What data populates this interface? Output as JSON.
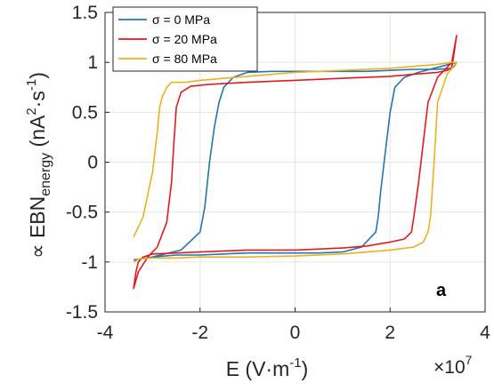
{
  "chart_data": {
    "type": "line",
    "xlabel_base": "E (V·m",
    "xlabel_sup": "-1",
    "xlabel_close": ")",
    "x_multiplier_base": "×10",
    "x_multiplier_exp": "7",
    "ylabel_prefix": "∝ EBN",
    "ylabel_sub": "energy",
    "ylabel_unit_open": " (nA",
    "ylabel_sup1": "2",
    "ylabel_mid": "·s",
    "ylabel_sup2": "-1",
    "ylabel_close": ")",
    "panel_label": "a",
    "xlim": [
      -4,
      4
    ],
    "ylim": [
      -1.5,
      1.5
    ],
    "xticks": [
      -4,
      -2,
      0,
      2,
      4
    ],
    "xtick_labels": [
      "-4",
      "-2",
      "0",
      "2",
      "4"
    ],
    "yticks": [
      -1.5,
      -1,
      -0.5,
      0,
      0.5,
      1,
      1.5
    ],
    "ytick_labels": [
      "-1.5",
      "-1",
      "-0.5",
      "0",
      "0.5",
      "1",
      "1.5"
    ],
    "grid": true,
    "legend": "top-left",
    "series": [
      {
        "name": "σ = 0 MPa",
        "color": "#1f77b4",
        "x": [
          -3.4,
          -3.0,
          -2.4,
          -2.0,
          -1.9,
          -1.8,
          -1.7,
          -1.6,
          -1.5,
          -1.3,
          -1.0,
          -0.5,
          0.0,
          0.5,
          1.0,
          1.5,
          2.0,
          2.5,
          3.0,
          3.3,
          3.35,
          3.4,
          3.4,
          3.0,
          2.6,
          2.3,
          2.1,
          2.0,
          1.9,
          1.8,
          1.75,
          1.7,
          1.4,
          1.0,
          0.5,
          0.0,
          -0.5,
          -1.0,
          -1.5,
          -2.0,
          -2.5,
          -3.0,
          -3.4
        ],
        "y": [
          -0.98,
          -0.95,
          -0.88,
          -0.7,
          -0.45,
          0.0,
          0.35,
          0.6,
          0.75,
          0.85,
          0.9,
          0.91,
          0.91,
          0.91,
          0.91,
          0.91,
          0.92,
          0.93,
          0.93,
          0.94,
          0.96,
          1.0,
          1.0,
          0.95,
          0.9,
          0.85,
          0.75,
          0.5,
          0.1,
          -0.3,
          -0.55,
          -0.7,
          -0.85,
          -0.9,
          -0.91,
          -0.91,
          -0.91,
          -0.91,
          -0.92,
          -0.93,
          -0.93,
          -0.95,
          -0.98
        ]
      },
      {
        "name": "σ = 20 MPa",
        "color": "#e31a1c",
        "x": [
          -3.4,
          -3.3,
          -3.1,
          -2.9,
          -2.7,
          -2.6,
          -2.55,
          -2.5,
          -2.4,
          -2.2,
          -1.8,
          -1.0,
          0.0,
          1.0,
          2.0,
          2.5,
          3.0,
          3.2,
          3.3,
          3.35,
          3.4,
          3.4,
          3.3,
          3.0,
          2.8,
          2.7,
          2.6,
          2.5,
          2.45,
          2.3,
          2.0,
          1.5,
          1.0,
          0.0,
          -1.0,
          -2.0,
          -2.5,
          -3.0,
          -3.2,
          -3.3,
          -3.35,
          -3.4
        ],
        "y": [
          -1.27,
          -1.1,
          -0.95,
          -0.85,
          -0.6,
          -0.2,
          0.2,
          0.55,
          0.7,
          0.76,
          0.78,
          0.8,
          0.82,
          0.84,
          0.86,
          0.88,
          0.9,
          0.92,
          0.95,
          1.1,
          1.27,
          1.27,
          1.0,
          0.85,
          0.6,
          0.2,
          -0.2,
          -0.55,
          -0.7,
          -0.77,
          -0.8,
          -0.84,
          -0.86,
          -0.88,
          -0.88,
          -0.9,
          -0.91,
          -0.92,
          -0.95,
          -1.0,
          -1.1,
          -1.27
        ]
      },
      {
        "name": "σ = 80 MPa",
        "color": "#edb120",
        "x": [
          -3.4,
          -3.2,
          -3.0,
          -2.9,
          -2.85,
          -2.8,
          -2.75,
          -2.7,
          -2.6,
          -2.3,
          -2.0,
          -1.0,
          0.0,
          1.0,
          2.0,
          2.5,
          3.0,
          3.3,
          3.4,
          3.4,
          3.2,
          3.0,
          2.95,
          2.9,
          2.85,
          2.8,
          2.7,
          2.5,
          2.0,
          1.0,
          0.0,
          -1.0,
          -2.0,
          -2.5,
          -3.0,
          -3.3,
          -3.35,
          -3.4
        ],
        "y": [
          -0.75,
          -0.55,
          -0.1,
          0.3,
          0.55,
          0.65,
          0.7,
          0.75,
          0.8,
          0.8,
          0.82,
          0.86,
          0.9,
          0.92,
          0.94,
          0.96,
          0.98,
          1.0,
          1.0,
          1.0,
          0.88,
          0.6,
          0.2,
          -0.2,
          -0.55,
          -0.7,
          -0.8,
          -0.85,
          -0.88,
          -0.92,
          -0.94,
          -0.95,
          -0.95,
          -0.96,
          -0.96,
          -0.97,
          -0.99,
          -1.0
        ]
      }
    ]
  }
}
